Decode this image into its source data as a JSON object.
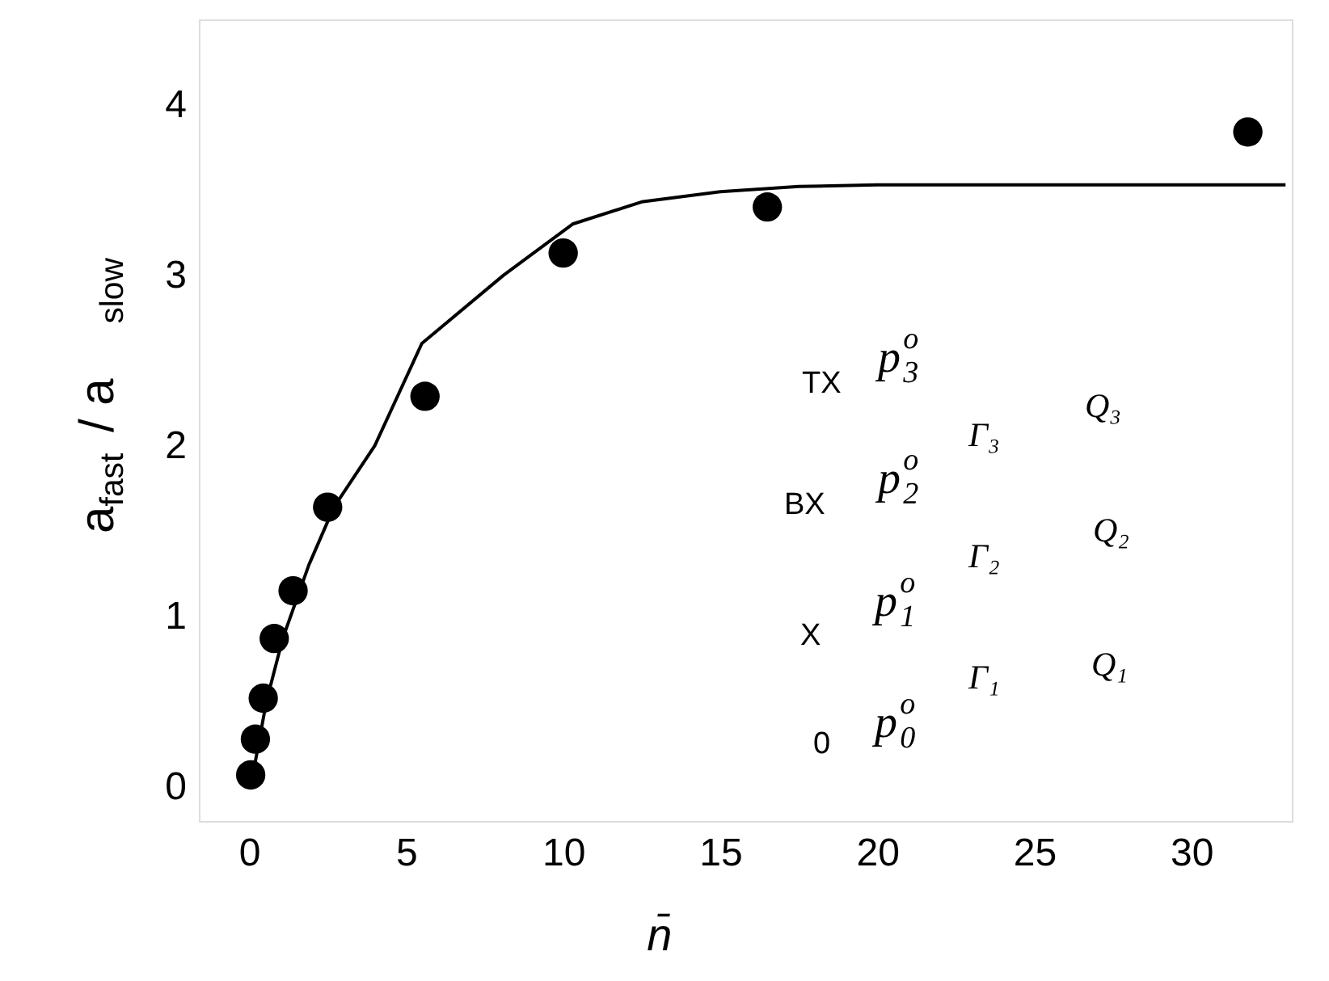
{
  "chart_data": {
    "type": "scatter",
    "xlabel": "n̄",
    "ylabel": "a$_{fast}$ / a$_{slow}$",
    "xlim": [
      -1.6,
      33.2
    ],
    "ylim": [
      -0.2,
      4.5
    ],
    "xticks": [
      0,
      5,
      10,
      15,
      20,
      25,
      30
    ],
    "yticks": [
      0,
      1,
      2,
      3,
      4
    ],
    "grid": false,
    "series": [
      {
        "marker": "circle",
        "color": "#000000",
        "x": [
          0.05,
          0.2,
          0.45,
          0.8,
          1.4,
          2.5,
          5.6,
          10.0,
          16.5,
          31.8
        ],
        "values": [
          0.07,
          0.28,
          0.52,
          0.87,
          1.15,
          1.64,
          2.29,
          3.13,
          3.4,
          3.84
        ]
      },
      {
        "type": "line",
        "marker": "none",
        "line_style": "solid",
        "color": "#000000",
        "x": [
          0.1,
          0.55,
          1.07,
          1.9,
          2.7,
          4.0,
          5.5,
          8.1,
          10.3,
          12.5,
          15.0,
          17.5,
          20.0,
          25.0,
          33.0
        ],
        "values": [
          0.05,
          0.5,
          0.87,
          1.3,
          1.64,
          2.0,
          2.6,
          3.0,
          3.3,
          3.43,
          3.49,
          3.52,
          3.53,
          3.53,
          3.53
        ]
      }
    ],
    "annotations": [
      "TX",
      "BX",
      "X",
      "0",
      "p$_{3}$$^{o}$",
      "p$_{2}$$^{o}$",
      "p$_{1}$$^{o}$",
      "p$_{0}$$^{o}$",
      "Γ₃",
      "Γ₂",
      "Γ₁",
      "Q₃",
      "Q₂",
      "Q₁"
    ]
  }
}
